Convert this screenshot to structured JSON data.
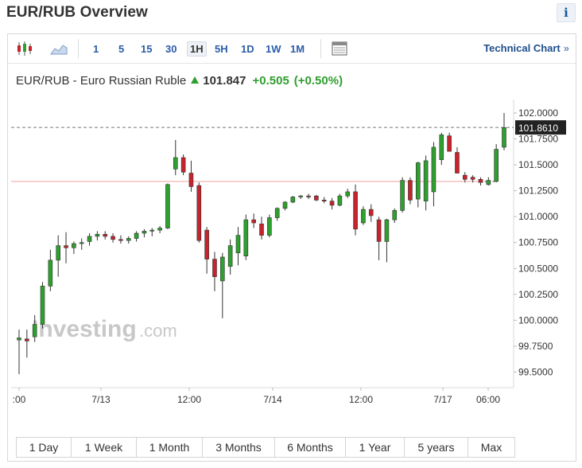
{
  "page": {
    "title": "EUR/RUB Overview",
    "info_icon_label": "i"
  },
  "toolbar": {
    "intervals": [
      "1",
      "5",
      "15",
      "30",
      "1H",
      "5H",
      "1D",
      "1W",
      "1M"
    ],
    "active_interval": "1H",
    "technical_chart_label": "Technical Chart",
    "technical_chart_chevron": "»"
  },
  "quote": {
    "name": "EUR/RUB - Euro Russian Ruble",
    "price": "101.847",
    "change": "+0.505",
    "change_pct": "(+0.50%)",
    "direction": "up"
  },
  "colors": {
    "up": "#2ea02e",
    "down": "#c8232c",
    "accent": "#1f4e8c",
    "ref_line": "#f0a0a0"
  },
  "watermark": {
    "text": "Investing",
    "suffix": ".com"
  },
  "range_buttons": [
    "1 Day",
    "1 Week",
    "1 Month",
    "3 Months",
    "6 Months",
    "1 Year",
    "5 years",
    "Max"
  ],
  "chart_data": {
    "type": "candlestick",
    "interval": "1H",
    "ylim": [
      99.35,
      102.1
    ],
    "yticks": [
      "102.0000",
      "101.7500",
      "101.5000",
      "101.2500",
      "101.0000",
      "100.7500",
      "100.5000",
      "100.2500",
      "100.0000",
      "99.7500",
      "99.5000"
    ],
    "xticks": [
      ":00",
      "7/13",
      "12:00",
      "7/14",
      "12:00",
      "7/17",
      "06:00"
    ],
    "last_price_label": "101.8610",
    "last_price": 101.861,
    "reference_price": 101.34,
    "candles": [
      {
        "o": 99.81,
        "h": 99.91,
        "l": 99.48,
        "c": 99.83
      },
      {
        "o": 99.82,
        "h": 99.91,
        "l": 99.64,
        "c": 99.8
      },
      {
        "o": 99.84,
        "h": 100.05,
        "l": 99.79,
        "c": 99.96
      },
      {
        "o": 99.96,
        "h": 100.37,
        "l": 99.92,
        "c": 100.33
      },
      {
        "o": 100.33,
        "h": 100.68,
        "l": 100.28,
        "c": 100.58
      },
      {
        "o": 100.58,
        "h": 100.82,
        "l": 100.42,
        "c": 100.72
      },
      {
        "o": 100.72,
        "h": 100.85,
        "l": 100.55,
        "c": 100.7
      },
      {
        "o": 100.7,
        "h": 100.76,
        "l": 100.64,
        "c": 100.74
      },
      {
        "o": 100.74,
        "h": 100.79,
        "l": 100.68,
        "c": 100.75
      },
      {
        "o": 100.76,
        "h": 100.84,
        "l": 100.72,
        "c": 100.81
      },
      {
        "o": 100.81,
        "h": 100.86,
        "l": 100.77,
        "c": 100.83
      },
      {
        "o": 100.83,
        "h": 100.86,
        "l": 100.78,
        "c": 100.81
      },
      {
        "o": 100.81,
        "h": 100.84,
        "l": 100.75,
        "c": 100.78
      },
      {
        "o": 100.78,
        "h": 100.82,
        "l": 100.74,
        "c": 100.77
      },
      {
        "o": 100.77,
        "h": 100.81,
        "l": 100.74,
        "c": 100.79
      },
      {
        "o": 100.79,
        "h": 100.86,
        "l": 100.76,
        "c": 100.84
      },
      {
        "o": 100.84,
        "h": 100.88,
        "l": 100.8,
        "c": 100.86
      },
      {
        "o": 100.86,
        "h": 100.89,
        "l": 100.81,
        "c": 100.87
      },
      {
        "o": 100.87,
        "h": 100.91,
        "l": 100.84,
        "c": 100.89
      },
      {
        "o": 100.89,
        "h": 101.32,
        "l": 100.88,
        "c": 101.31
      },
      {
        "o": 101.46,
        "h": 101.74,
        "l": 101.4,
        "c": 101.57
      },
      {
        "o": 101.57,
        "h": 101.6,
        "l": 101.4,
        "c": 101.43
      },
      {
        "o": 101.42,
        "h": 101.54,
        "l": 101.24,
        "c": 101.29
      },
      {
        "o": 101.3,
        "h": 101.33,
        "l": 100.75,
        "c": 100.77
      },
      {
        "o": 100.87,
        "h": 100.9,
        "l": 100.45,
        "c": 100.59
      },
      {
        "o": 100.59,
        "h": 100.66,
        "l": 100.28,
        "c": 100.42
      },
      {
        "o": 100.38,
        "h": 100.65,
        "l": 100.02,
        "c": 100.61
      },
      {
        "o": 100.52,
        "h": 100.78,
        "l": 100.44,
        "c": 100.72
      },
      {
        "o": 100.65,
        "h": 100.9,
        "l": 100.53,
        "c": 100.82
      },
      {
        "o": 100.62,
        "h": 101.02,
        "l": 100.58,
        "c": 100.97
      },
      {
        "o": 100.97,
        "h": 101.03,
        "l": 100.89,
        "c": 100.94
      },
      {
        "o": 100.93,
        "h": 101.0,
        "l": 100.78,
        "c": 100.82
      },
      {
        "o": 100.82,
        "h": 101.02,
        "l": 100.8,
        "c": 100.99
      },
      {
        "o": 100.99,
        "h": 101.09,
        "l": 100.96,
        "c": 101.08
      },
      {
        "o": 101.08,
        "h": 101.15,
        "l": 101.06,
        "c": 101.14
      },
      {
        "o": 101.14,
        "h": 101.2,
        "l": 101.13,
        "c": 101.19
      },
      {
        "o": 101.19,
        "h": 101.21,
        "l": 101.17,
        "c": 101.2
      },
      {
        "o": 101.2,
        "h": 101.22,
        "l": 101.17,
        "c": 101.19
      },
      {
        "o": 101.2,
        "h": 101.21,
        "l": 101.15,
        "c": 101.16
      },
      {
        "o": 101.16,
        "h": 101.19,
        "l": 101.13,
        "c": 101.15
      },
      {
        "o": 101.15,
        "h": 101.18,
        "l": 101.07,
        "c": 101.11
      },
      {
        "o": 101.11,
        "h": 101.22,
        "l": 101.1,
        "c": 101.2
      },
      {
        "o": 101.2,
        "h": 101.27,
        "l": 101.18,
        "c": 101.24
      },
      {
        "o": 101.24,
        "h": 101.31,
        "l": 100.82,
        "c": 100.88
      },
      {
        "o": 100.94,
        "h": 101.1,
        "l": 100.92,
        "c": 101.07
      },
      {
        "o": 101.07,
        "h": 101.12,
        "l": 100.95,
        "c": 101.01
      },
      {
        "o": 100.97,
        "h": 101.0,
        "l": 100.58,
        "c": 100.76
      },
      {
        "o": 100.76,
        "h": 100.98,
        "l": 100.56,
        "c": 100.97
      },
      {
        "o": 100.97,
        "h": 101.08,
        "l": 100.94,
        "c": 101.06
      },
      {
        "o": 101.06,
        "h": 101.38,
        "l": 101.04,
        "c": 101.35
      },
      {
        "o": 101.35,
        "h": 101.38,
        "l": 101.12,
        "c": 101.16
      },
      {
        "o": 101.17,
        "h": 101.53,
        "l": 101.09,
        "c": 101.52
      },
      {
        "o": 101.15,
        "h": 101.59,
        "l": 101.06,
        "c": 101.54
      },
      {
        "o": 101.24,
        "h": 101.72,
        "l": 101.1,
        "c": 101.67
      },
      {
        "o": 101.55,
        "h": 101.81,
        "l": 101.5,
        "c": 101.79
      },
      {
        "o": 101.78,
        "h": 101.81,
        "l": 101.63,
        "c": 101.63
      },
      {
        "o": 101.62,
        "h": 101.67,
        "l": 101.42,
        "c": 101.42
      },
      {
        "o": 101.4,
        "h": 101.43,
        "l": 101.33,
        "c": 101.36
      },
      {
        "o": 101.38,
        "h": 101.4,
        "l": 101.33,
        "c": 101.36
      },
      {
        "o": 101.36,
        "h": 101.38,
        "l": 101.3,
        "c": 101.33
      },
      {
        "o": 101.31,
        "h": 101.38,
        "l": 101.3,
        "c": 101.35
      },
      {
        "o": 101.34,
        "h": 101.7,
        "l": 101.33,
        "c": 101.65
      },
      {
        "o": 101.67,
        "h": 102.0,
        "l": 101.64,
        "c": 101.86
      }
    ]
  }
}
